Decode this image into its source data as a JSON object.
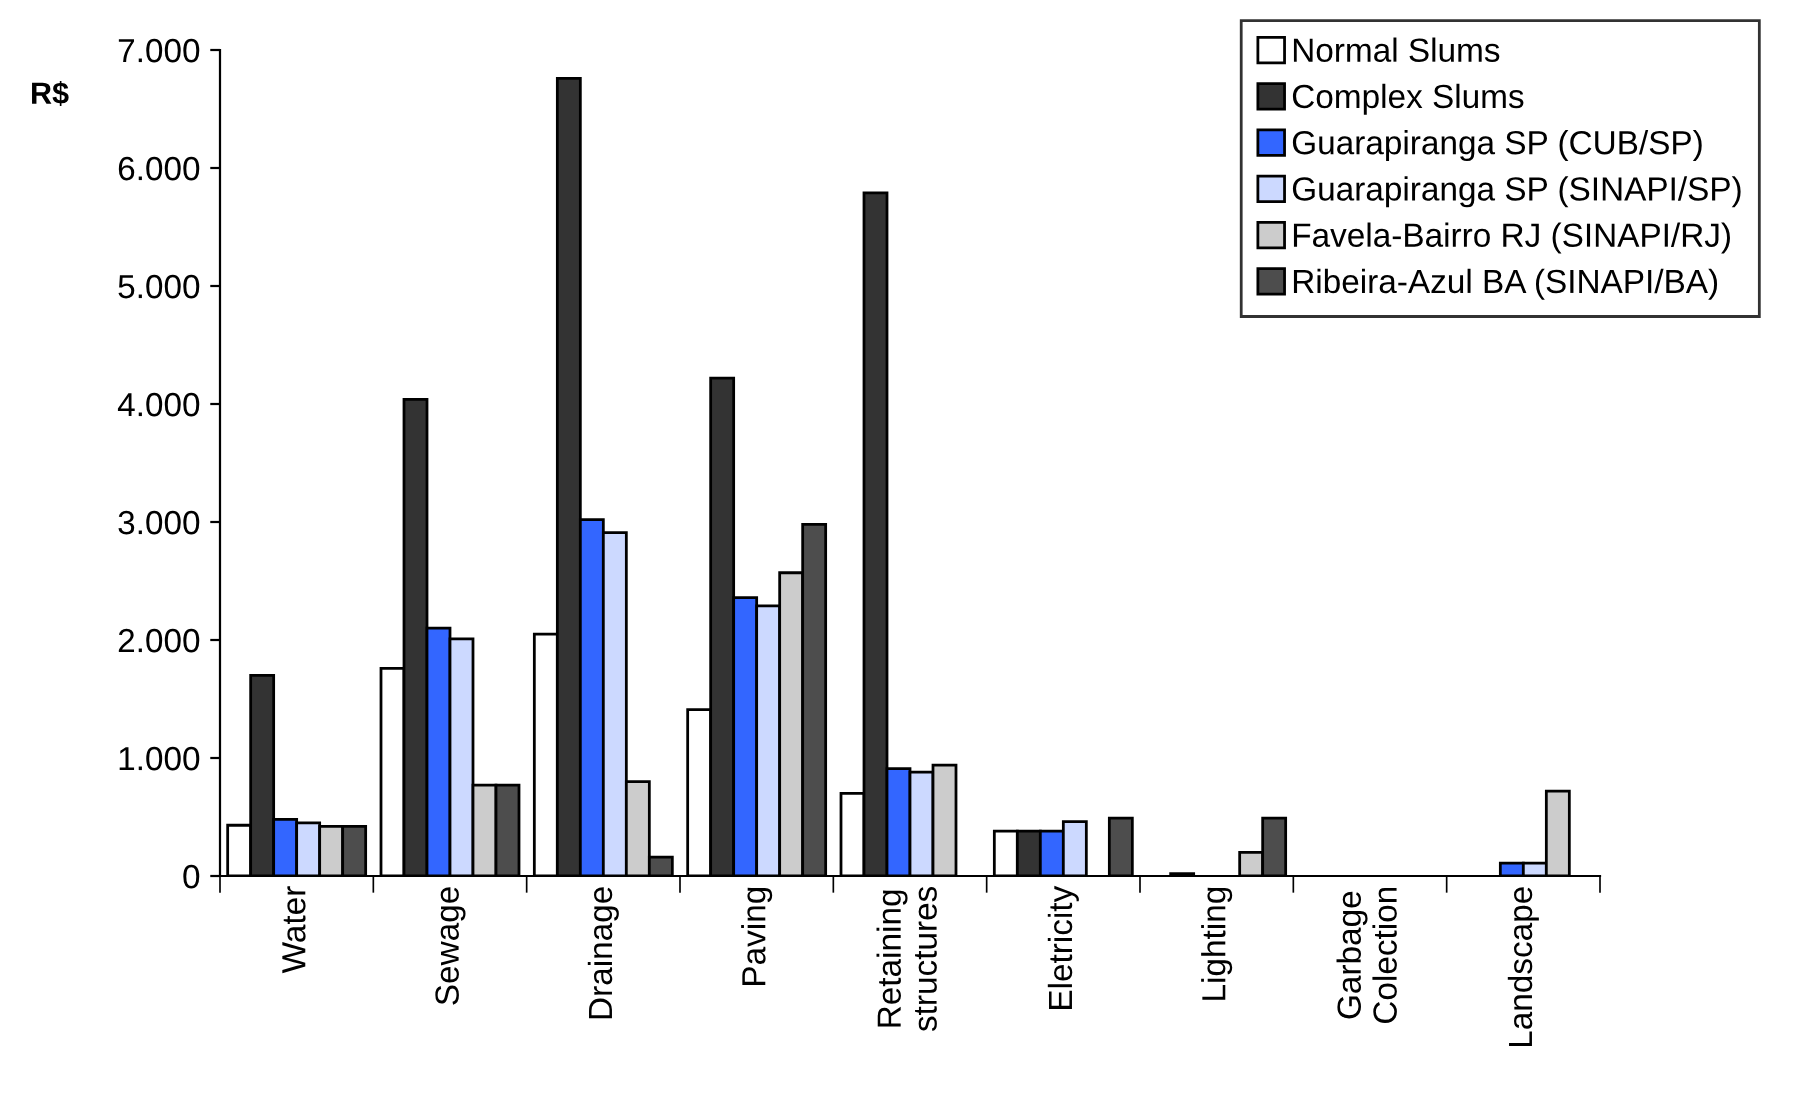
{
  "chart_data": {
    "type": "bar",
    "ylabel": "R$",
    "categories": [
      "Water",
      "Sewage",
      "Drainage",
      "Paving",
      "Retaining\nstructures",
      "Eletricity",
      "Lighting",
      "Garbage\nColection",
      "Landscape"
    ],
    "series": [
      {
        "name": "Normal Slums",
        "color": "#ffffff",
        "values": [
          430,
          1760,
          2050,
          1410,
          700,
          380,
          null,
          null,
          null
        ]
      },
      {
        "name": "Complex Slums",
        "color": "#333333",
        "values": [
          1700,
          4040,
          6760,
          4220,
          5790,
          380,
          20,
          null,
          null
        ]
      },
      {
        "name": "Guarapiranga SP (CUB/SP)",
        "color": "#3366ff",
        "values": [
          480,
          2100,
          3020,
          2360,
          910,
          380,
          null,
          null,
          110
        ]
      },
      {
        "name": "Guarapiranga SP (SINAPI/SP)",
        "color": "#ccd9ff",
        "values": [
          450,
          2010,
          2910,
          2290,
          880,
          460,
          null,
          null,
          110
        ]
      },
      {
        "name": "Favela-Bairro RJ (SINAPI/RJ)",
        "color": "#cccccc",
        "values": [
          420,
          770,
          800,
          2570,
          940,
          null,
          200,
          null,
          720
        ]
      },
      {
        "name": "Ribeira-Azul BA (SINAPI/BA)",
        "color": "#4d4d4d",
        "values": [
          420,
          770,
          160,
          2980,
          null,
          490,
          490,
          null,
          null
        ]
      }
    ],
    "ylim": [
      0,
      7000
    ],
    "yticks": [
      0,
      {
        "value": 1000,
        "label": "1.000"
      },
      {
        "value": 2000,
        "label": "2.000"
      },
      {
        "value": 3000,
        "label": "3.000"
      },
      {
        "value": 4000,
        "label": "4.000"
      },
      {
        "value": 5000,
        "label": "5.000"
      },
      {
        "value": 6000,
        "label": "6.000"
      },
      {
        "value": 7000,
        "label": "7.000"
      }
    ],
    "grid": false,
    "legend": "top right"
  }
}
